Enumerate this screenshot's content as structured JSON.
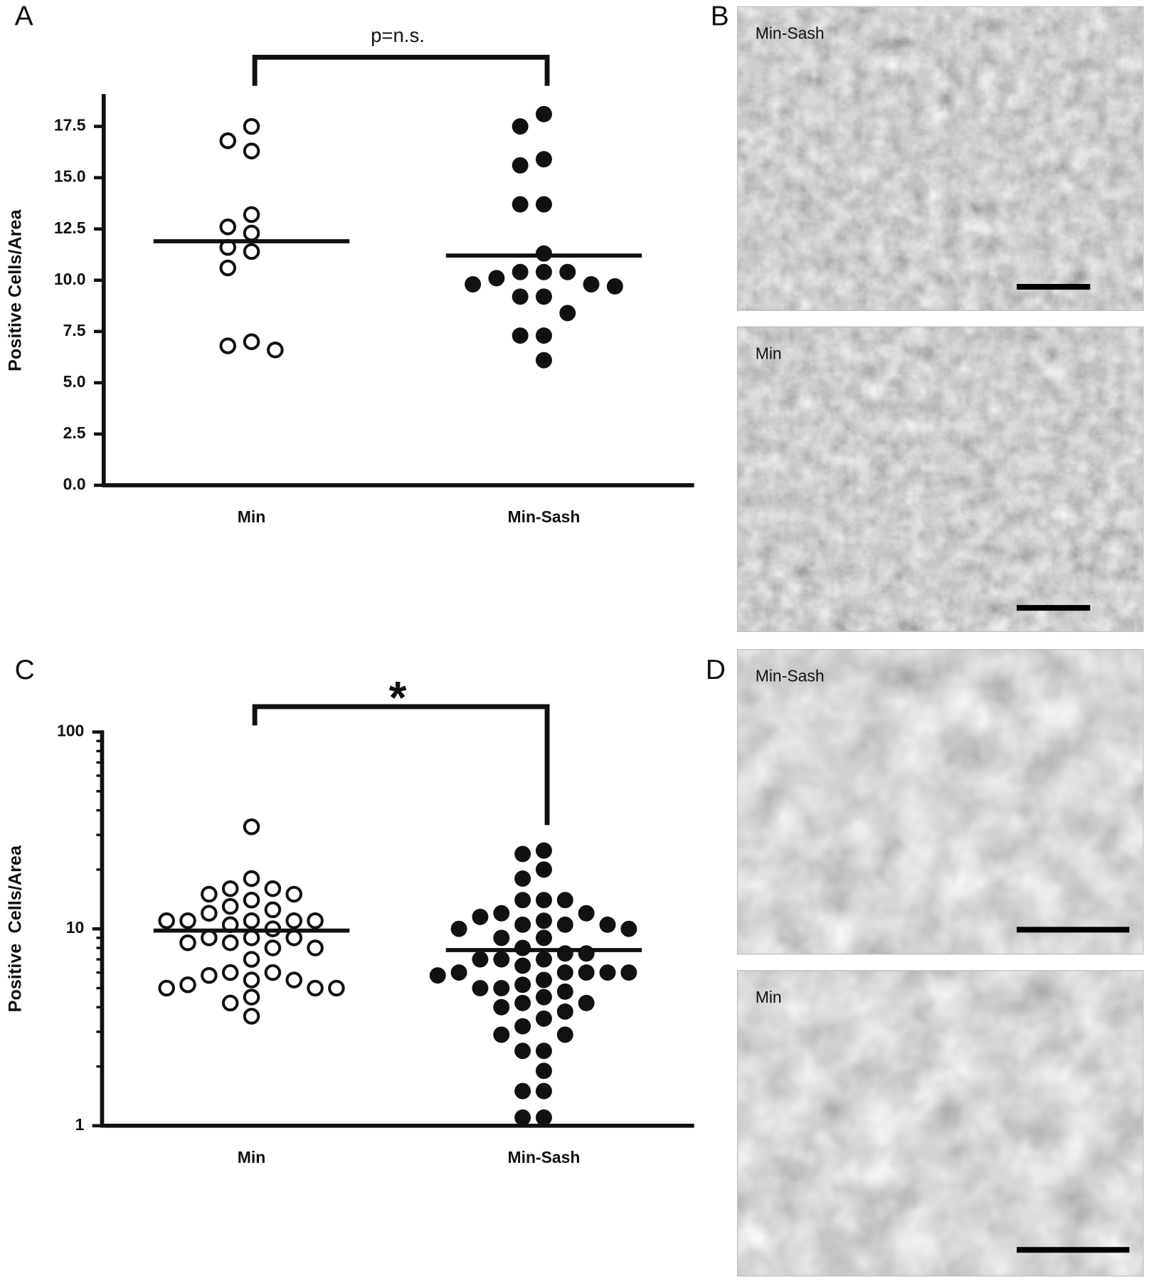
{
  "chart_data": [
    {
      "type": "strip",
      "panel": "A",
      "annotation": "p=n.s.",
      "ylabel": "Positive Cells/Area",
      "ylim": [
        0,
        19
      ],
      "log": false,
      "yticks": [
        {
          "value": 0,
          "label": "0.0"
        },
        2.5,
        {
          "value": 5,
          "label": "5.0"
        },
        7.5,
        {
          "value": 10,
          "label": "10.0"
        },
        12.5,
        {
          "value": 15,
          "label": "15.0"
        },
        17.5
      ],
      "groups": [
        {
          "name": "Min",
          "marker": "open",
          "mean": 11.9,
          "values": [
            16.8,
            17.5,
            16.3,
            13.2,
            12.3,
            12.6,
            11.4,
            11.6,
            10.6,
            7.0,
            6.6,
            6.8
          ]
        },
        {
          "name": "Min-Sash",
          "marker": "filled",
          "mean": 11.2,
          "values": [
            18.1,
            17.5,
            15.9,
            15.6,
            13.7,
            13.7,
            11.3,
            10.4,
            10.4,
            10.4,
            9.8,
            9.7,
            9.8,
            10.1,
            9.2,
            9.2,
            8.4,
            7.3,
            7.3,
            6.1
          ]
        }
      ]
    },
    {
      "type": "strip",
      "panel": "C",
      "annotation": "*",
      "ylabel": "Positive  Cells/Area",
      "ylim": [
        1,
        100
      ],
      "log": true,
      "yticks": [
        1,
        10,
        100
      ],
      "yticks_minor": [
        2,
        3,
        4,
        5,
        6,
        7,
        8,
        9,
        20,
        30,
        40,
        50,
        60,
        70,
        80,
        90
      ],
      "groups": [
        {
          "name": "Min",
          "marker": "open",
          "mean": 9.8,
          "values": [
            33,
            18,
            16,
            16,
            15,
            15,
            14,
            13,
            12.5,
            12,
            11,
            11,
            11,
            11,
            11,
            10.5,
            10,
            9,
            9,
            9,
            8.5,
            8.5,
            8,
            8,
            7,
            6,
            6,
            5.8,
            5.5,
            5.5,
            5.2,
            5,
            5,
            5,
            4.5,
            4.2,
            3.6
          ]
        },
        {
          "name": "Min-Sash",
          "marker": "filled",
          "mean": 7.8,
          "values": [
            25,
            24,
            20,
            18,
            14,
            14,
            14,
            12,
            12,
            11.5,
            11,
            10.5,
            10.5,
            10.5,
            10,
            10,
            9,
            9,
            8,
            7.5,
            7.5,
            7,
            7,
            7,
            6.5,
            6,
            6,
            6,
            6,
            6,
            5.8,
            5.5,
            5.2,
            5,
            5,
            4.8,
            4.5,
            4.2,
            4.2,
            4,
            3.8,
            3.5,
            3.2,
            2.9,
            2.9,
            2.4,
            2.4,
            1.9,
            1.5,
            1.5,
            1.1,
            1.1
          ]
        }
      ]
    }
  ],
  "images": [
    {
      "panel": "B",
      "labels": [
        "Min-Sash",
        "Min"
      ]
    },
    {
      "panel": "D",
      "labels": [
        "Min-Sash",
        "Min"
      ]
    }
  ]
}
